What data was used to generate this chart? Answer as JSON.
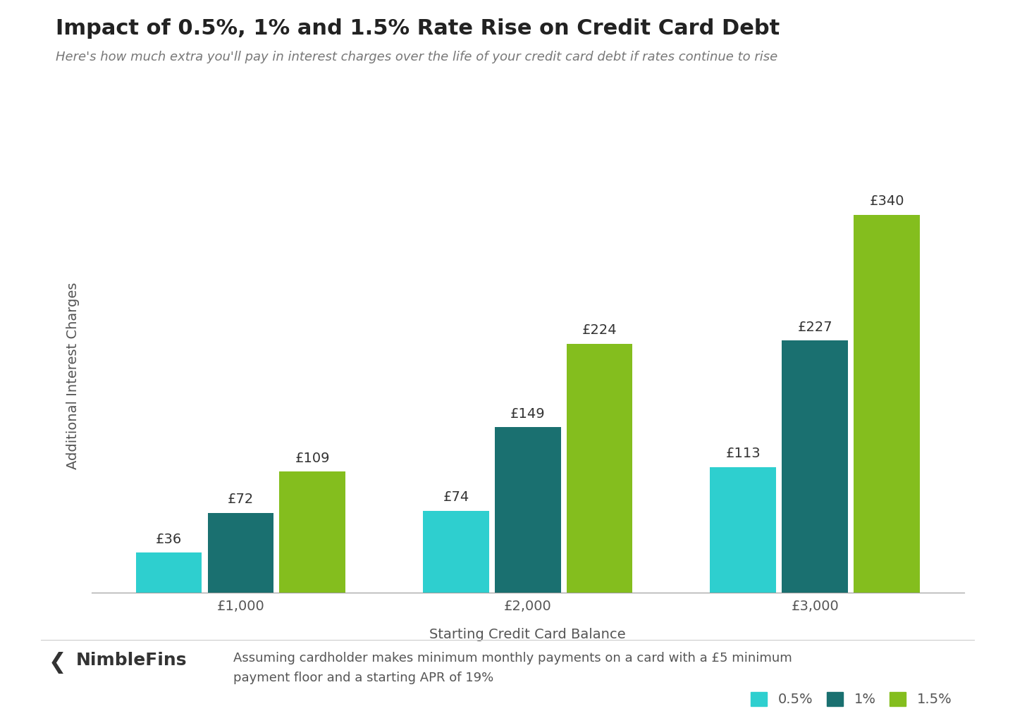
{
  "title": "Impact of 0.5%, 1% and 1.5% Rate Rise on Credit Card Debt",
  "subtitle": "Here's how much extra you'll pay in interest charges over the life of your credit card debt if rates continue to rise",
  "xlabel": "Starting Credit Card Balance",
  "ylabel": "Additional Interest Charges",
  "categories": [
    "£1,000",
    "£2,000",
    "£3,000"
  ],
  "series": {
    "0.5%": [
      36,
      74,
      113
    ],
    "1%": [
      72,
      149,
      227
    ],
    "1.5%": [
      109,
      224,
      340
    ]
  },
  "bar_colors": {
    "0.5%": "#2ecfcf",
    "1%": "#1a7070",
    "1.5%": "#84be1e"
  },
  "bar_labels": {
    "0.5%": [
      "£36",
      "£74",
      "£113"
    ],
    "1%": [
      "£72",
      "£149",
      "£227"
    ],
    "1.5%": [
      "£109",
      "£224",
      "£340"
    ]
  },
  "ylim": [
    0,
    390
  ],
  "background_color": "#ffffff",
  "title_fontsize": 22,
  "subtitle_fontsize": 13,
  "label_fontsize": 14,
  "tick_fontsize": 14,
  "bar_label_fontsize": 14,
  "legend_fontsize": 14,
  "footer_text": "Assuming cardholder makes minimum monthly payments on a card with a £5 minimum\npayment floor and a starting APR of 19%",
  "footer_fontsize": 13,
  "nimblefins_text": "NimbleFins",
  "nimblefins_fontsize": 18,
  "title_color": "#222222",
  "subtitle_color": "#777777",
  "axis_color": "#555555",
  "bar_label_color": "#333333",
  "footer_color": "#555555"
}
